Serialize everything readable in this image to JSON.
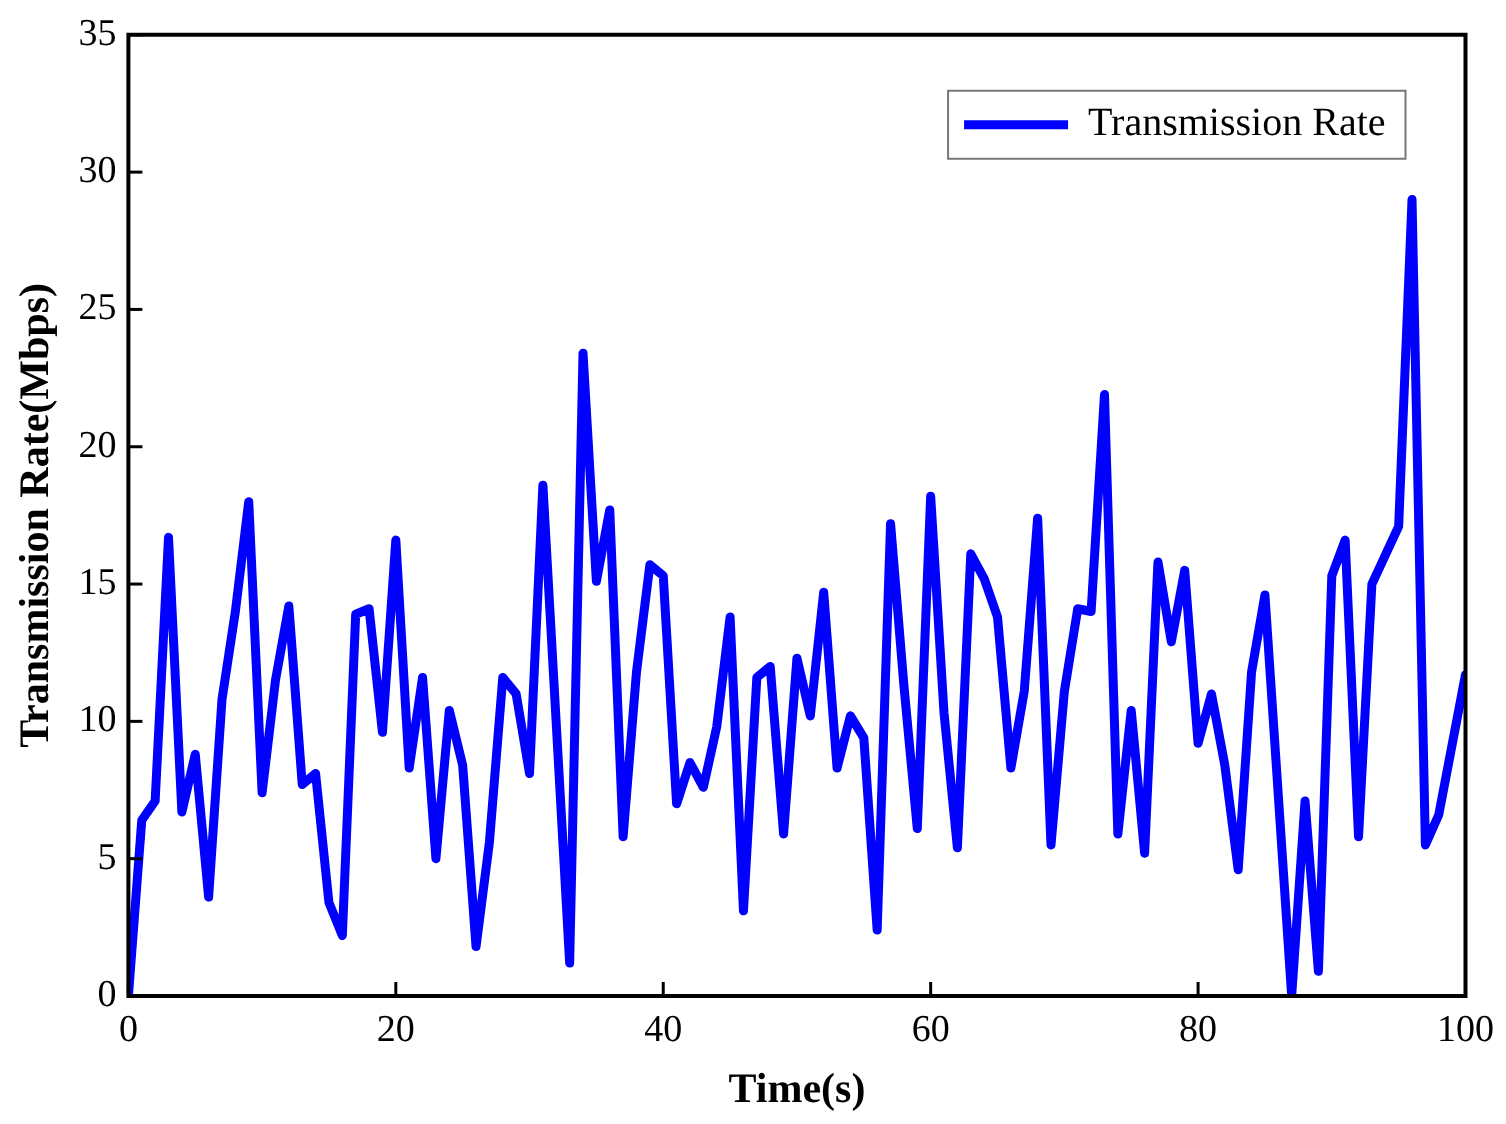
{
  "chart_data": {
    "type": "line",
    "xlabel": "Time(s)",
    "ylabel": "Transmission Rate(Mbps)",
    "xlim": [
      0,
      100
    ],
    "xticks": [
      0,
      20,
      40,
      60,
      80,
      100
    ],
    "ylim": [
      0,
      35
    ],
    "yticks": [
      0,
      5,
      10,
      15,
      20,
      25,
      30,
      35
    ],
    "grid": false,
    "legend": "top right",
    "marker": "none",
    "line_style": "solid",
    "series": [
      {
        "name": "Transmission Rate",
        "color": "#0000ff",
        "x": [
          0,
          1,
          2,
          3,
          4,
          5,
          6,
          7,
          8,
          9,
          10,
          11,
          12,
          13,
          14,
          15,
          16,
          17,
          18,
          19,
          20,
          21,
          22,
          23,
          24,
          25,
          26,
          27,
          28,
          29,
          30,
          31,
          33,
          34,
          35,
          36,
          37,
          38,
          39,
          40,
          41,
          42,
          43,
          44,
          45,
          46,
          47,
          48,
          49,
          50,
          51,
          52,
          53,
          54,
          55,
          56,
          57,
          58,
          59,
          60,
          61,
          62,
          63,
          64,
          65,
          66,
          67,
          68,
          69,
          70,
          71,
          72,
          73,
          74,
          75,
          76,
          77,
          78,
          79,
          80,
          81,
          82,
          83,
          84,
          85,
          87,
          88,
          89,
          90,
          91,
          92,
          93,
          95,
          96,
          97,
          98,
          100
        ],
        "values": [
          0,
          6.4,
          7.1,
          16.7,
          6.7,
          8.8,
          3.6,
          10.8,
          14,
          18,
          7.4,
          11.5,
          14.2,
          7.7,
          8.1,
          3.4,
          2.2,
          13.9,
          14.1,
          9.6,
          16.6,
          8.3,
          11.6,
          5,
          10.4,
          8.4,
          1.8,
          5.6,
          11.6,
          11,
          8.1,
          18.6,
          1.2,
          23.4,
          15.1,
          17.7,
          5.8,
          11.8,
          15.7,
          15.3,
          7,
          8.5,
          7.6,
          9.8,
          13.8,
          3.1,
          11.6,
          12,
          5.9,
          12.3,
          10.2,
          14.7,
          8.3,
          10.2,
          9.4,
          2.4,
          17.2,
          11.3,
          6.1,
          18.2,
          10.3,
          5.4,
          16.1,
          15.2,
          13.8,
          8.3,
          11.1,
          17.4,
          5.5,
          11.1,
          14.1,
          14,
          21.9,
          5.9,
          10.4,
          5.2,
          15.8,
          12.9,
          15.5,
          9.2,
          11,
          8.4,
          4.6,
          11.8,
          14.6,
          0,
          7.1,
          0.9,
          15.3,
          16.6,
          5.8,
          15,
          17.1,
          29,
          5.5,
          6.6,
          11.7
        ]
      }
    ]
  }
}
